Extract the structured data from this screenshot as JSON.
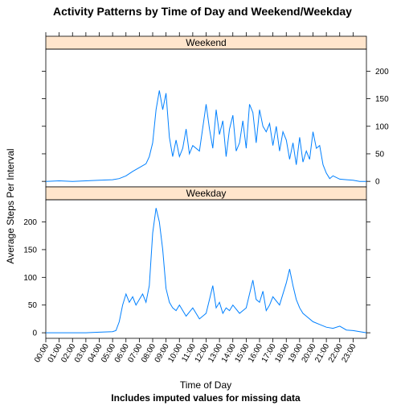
{
  "colors": {
    "line": "#0080ff",
    "strip_bg": "#ffe5cc",
    "panel_border": "#000000"
  },
  "chart_data": {
    "type": "line",
    "title": "Activity Patterns by Time of Day and Weekend/Weekday",
    "xlabel": "Time of Day",
    "ylabel": "Average Steps Per Interval",
    "caption": "Includes imputed values for missing data",
    "xlim": [
      0,
      24
    ],
    "ylim": [
      -10,
      240
    ],
    "yticks": [
      0,
      50,
      100,
      150,
      200
    ],
    "x_tick_labels": [
      "00:00",
      "01:00",
      "02:00",
      "03:00",
      "04:00",
      "05:00",
      "06:00",
      "07:00",
      "08:00",
      "09:00",
      "10:00",
      "11:00",
      "12:00",
      "13:00",
      "14:00",
      "15:00",
      "16:00",
      "17:00",
      "18:00",
      "19:00",
      "20:00",
      "21:00",
      "22:00",
      "23:00"
    ],
    "panels": [
      {
        "name": "Weekend",
        "x": [
          0,
          1,
          2,
          3,
          4,
          5,
          5.5,
          6,
          6.5,
          7,
          7.5,
          7.75,
          8,
          8.25,
          8.5,
          8.75,
          9,
          9.25,
          9.5,
          9.75,
          10,
          10.25,
          10.5,
          10.75,
          11,
          11.5,
          12,
          12.25,
          12.5,
          12.75,
          13,
          13.25,
          13.5,
          13.75,
          14,
          14.25,
          14.5,
          14.75,
          15,
          15.25,
          15.5,
          15.75,
          16,
          16.25,
          16.5,
          16.75,
          17,
          17.25,
          17.5,
          17.75,
          18,
          18.25,
          18.5,
          18.75,
          19,
          19.25,
          19.5,
          19.75,
          20,
          20.25,
          20.5,
          20.75,
          21,
          21.25,
          21.5,
          22,
          22.5,
          23,
          23.5,
          24
        ],
        "values": [
          0,
          1,
          0,
          1,
          2,
          3,
          5,
          10,
          18,
          25,
          32,
          45,
          70,
          130,
          165,
          130,
          160,
          80,
          45,
          75,
          45,
          60,
          95,
          50,
          65,
          55,
          140,
          95,
          60,
          130,
          85,
          110,
          45,
          95,
          120,
          55,
          70,
          110,
          60,
          140,
          125,
          70,
          130,
          100,
          90,
          105,
          65,
          100,
          55,
          90,
          75,
          40,
          70,
          30,
          80,
          35,
          55,
          40,
          90,
          60,
          65,
          30,
          15,
          5,
          10,
          4,
          3,
          2,
          0,
          0
        ]
      },
      {
        "name": "Weekday",
        "x": [
          0,
          1,
          2,
          3,
          4,
          5,
          5.25,
          5.5,
          5.75,
          6,
          6.25,
          6.5,
          6.75,
          7,
          7.25,
          7.5,
          7.75,
          8,
          8.25,
          8.5,
          8.75,
          9,
          9.25,
          9.5,
          9.75,
          10,
          10.5,
          11,
          11.5,
          12,
          12.25,
          12.5,
          12.75,
          13,
          13.25,
          13.5,
          13.75,
          14,
          14.5,
          15,
          15.25,
          15.5,
          15.75,
          16,
          16.25,
          16.5,
          16.75,
          17,
          17.5,
          18,
          18.25,
          18.5,
          18.75,
          19,
          19.25,
          19.5,
          20,
          20.5,
          21,
          21.5,
          22,
          22.5,
          23,
          23.5,
          24
        ],
        "values": [
          0,
          0,
          0,
          0,
          1,
          2,
          4,
          20,
          50,
          70,
          55,
          65,
          50,
          60,
          70,
          55,
          85,
          180,
          225,
          200,
          150,
          80,
          55,
          45,
          40,
          50,
          30,
          45,
          25,
          35,
          60,
          85,
          45,
          55,
          35,
          45,
          40,
          50,
          35,
          45,
          70,
          95,
          60,
          55,
          75,
          40,
          50,
          65,
          50,
          90,
          115,
          85,
          60,
          45,
          35,
          30,
          20,
          15,
          10,
          8,
          12,
          5,
          4,
          2,
          0
        ]
      }
    ]
  }
}
